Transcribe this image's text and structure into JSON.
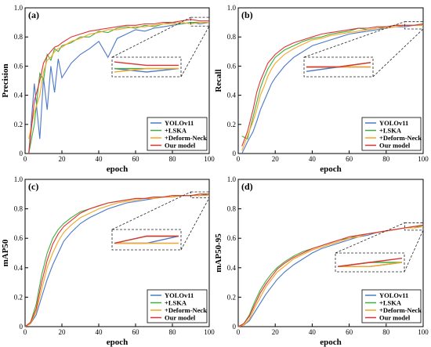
{
  "colors": {
    "YOLOv11": "#4b78c8",
    "+LSKA": "#3fae3f",
    "+Deform-Neck": "#f5a623",
    "Our model": "#e03131"
  },
  "chart_data": [
    {
      "type": "line",
      "panel_label": "(a)",
      "xlabel": "epoch",
      "ylabel": "Precision",
      "xlim": [
        0,
        100
      ],
      "ylim": [
        0,
        1.0
      ],
      "xticks": [
        "0",
        "20",
        "40",
        "60",
        "80",
        "100"
      ],
      "yticks": [
        "0",
        "0.2",
        "0.4",
        "0.6",
        "0.8",
        "1.0"
      ],
      "legend": "bottom-right",
      "legend_entries": [
        "YOLOv11",
        "+LSKA",
        "+Deform-Neck",
        "Our model"
      ],
      "inset": "zoom of epochs 90-100 near y≈0.90",
      "series": [
        {
          "name": "YOLOv11",
          "x": [
            2,
            5,
            8,
            10,
            12,
            14,
            16,
            18,
            20,
            25,
            30,
            35,
            40,
            45,
            50,
            55,
            60,
            65,
            70,
            75,
            80,
            85,
            90,
            95,
            100
          ],
          "y": [
            0.0,
            0.48,
            0.1,
            0.52,
            0.3,
            0.6,
            0.42,
            0.65,
            0.52,
            0.62,
            0.68,
            0.72,
            0.77,
            0.66,
            0.79,
            0.82,
            0.85,
            0.84,
            0.86,
            0.87,
            0.88,
            0.89,
            0.9,
            0.89,
            0.9
          ]
        },
        {
          "name": "+LSKA",
          "x": [
            2,
            5,
            8,
            10,
            12,
            14,
            16,
            18,
            20,
            25,
            30,
            35,
            40,
            45,
            50,
            55,
            60,
            65,
            70,
            75,
            80,
            85,
            90,
            95,
            100
          ],
          "y": [
            0.0,
            0.2,
            0.55,
            0.5,
            0.68,
            0.64,
            0.72,
            0.7,
            0.74,
            0.76,
            0.8,
            0.8,
            0.84,
            0.83,
            0.86,
            0.87,
            0.86,
            0.88,
            0.87,
            0.89,
            0.9,
            0.89,
            0.9,
            0.9,
            0.9
          ]
        },
        {
          "name": "+Deform-Neck",
          "x": [
            2,
            5,
            8,
            10,
            12,
            14,
            16,
            18,
            20,
            25,
            30,
            35,
            40,
            45,
            50,
            55,
            60,
            65,
            70,
            75,
            80,
            85,
            90,
            95,
            100
          ],
          "y": [
            0.1,
            0.28,
            0.4,
            0.56,
            0.64,
            0.66,
            0.7,
            0.72,
            0.73,
            0.77,
            0.79,
            0.82,
            0.83,
            0.85,
            0.85,
            0.86,
            0.87,
            0.87,
            0.88,
            0.89,
            0.89,
            0.9,
            0.89,
            0.9,
            0.9
          ]
        },
        {
          "name": "Our model",
          "x": [
            2,
            5,
            8,
            10,
            12,
            14,
            16,
            18,
            20,
            25,
            30,
            35,
            40,
            45,
            50,
            55,
            60,
            65,
            70,
            75,
            80,
            85,
            90,
            95,
            100
          ],
          "y": [
            0.0,
            0.36,
            0.5,
            0.62,
            0.67,
            0.7,
            0.73,
            0.74,
            0.76,
            0.8,
            0.82,
            0.84,
            0.85,
            0.86,
            0.87,
            0.88,
            0.88,
            0.89,
            0.89,
            0.9,
            0.9,
            0.91,
            0.92,
            0.91,
            0.91
          ]
        }
      ]
    },
    {
      "type": "line",
      "panel_label": "(b)",
      "xlabel": "epoch",
      "ylabel": "Recall",
      "xlim": [
        0,
        100
      ],
      "ylim": [
        0,
        1.0
      ],
      "xticks": [
        "0",
        "20",
        "40",
        "60",
        "80",
        "100"
      ],
      "yticks": [
        "0",
        "0.2",
        "0.4",
        "0.6",
        "0.8",
        "1.0"
      ],
      "legend": "bottom-right",
      "legend_entries": [
        "YOLOv11",
        "+LSKA",
        "+Deform-Neck",
        "Our model"
      ],
      "inset": "zoom of epochs 90-100 near y≈0.88",
      "series": [
        {
          "name": "YOLOv11",
          "x": [
            2,
            5,
            8,
            10,
            12,
            14,
            16,
            18,
            20,
            25,
            30,
            35,
            40,
            45,
            50,
            55,
            60,
            65,
            70,
            75,
            80,
            85,
            90,
            95,
            100
          ],
          "y": [
            0.0,
            0.08,
            0.15,
            0.22,
            0.3,
            0.36,
            0.42,
            0.48,
            0.52,
            0.6,
            0.66,
            0.7,
            0.74,
            0.76,
            0.78,
            0.8,
            0.82,
            0.83,
            0.84,
            0.85,
            0.86,
            0.87,
            0.87,
            0.88,
            0.88
          ]
        },
        {
          "name": "+LSKA",
          "x": [
            2,
            5,
            8,
            10,
            12,
            14,
            16,
            18,
            20,
            25,
            30,
            35,
            40,
            45,
            50,
            55,
            60,
            65,
            70,
            75,
            80,
            85,
            90,
            95,
            100
          ],
          "y": [
            0.12,
            0.1,
            0.25,
            0.35,
            0.45,
            0.52,
            0.58,
            0.62,
            0.66,
            0.71,
            0.74,
            0.77,
            0.79,
            0.8,
            0.82,
            0.83,
            0.84,
            0.86,
            0.85,
            0.86,
            0.87,
            0.88,
            0.88,
            0.88,
            0.89
          ]
        },
        {
          "name": "+Deform-Neck",
          "x": [
            2,
            5,
            8,
            10,
            12,
            14,
            16,
            18,
            20,
            25,
            30,
            35,
            40,
            45,
            50,
            55,
            60,
            65,
            70,
            75,
            80,
            85,
            90,
            95,
            100
          ],
          "y": [
            0.02,
            0.12,
            0.22,
            0.3,
            0.4,
            0.46,
            0.53,
            0.58,
            0.62,
            0.68,
            0.72,
            0.75,
            0.78,
            0.79,
            0.81,
            0.82,
            0.83,
            0.84,
            0.85,
            0.86,
            0.86,
            0.87,
            0.88,
            0.88,
            0.88
          ]
        },
        {
          "name": "Our model",
          "x": [
            2,
            5,
            8,
            10,
            12,
            14,
            16,
            18,
            20,
            25,
            30,
            35,
            40,
            45,
            50,
            55,
            60,
            65,
            70,
            75,
            80,
            85,
            90,
            95,
            100
          ],
          "y": [
            0.05,
            0.15,
            0.3,
            0.42,
            0.5,
            0.56,
            0.62,
            0.65,
            0.68,
            0.73,
            0.76,
            0.78,
            0.8,
            0.82,
            0.83,
            0.84,
            0.85,
            0.86,
            0.86,
            0.87,
            0.87,
            0.88,
            0.88,
            0.88,
            0.89
          ]
        }
      ]
    },
    {
      "type": "line",
      "panel_label": "(c)",
      "xlabel": "epoch",
      "ylabel": "mAP50",
      "xlim": [
        0,
        100
      ],
      "ylim": [
        0,
        1.0
      ],
      "xticks": [
        "0",
        "20",
        "40",
        "60",
        "80",
        "100"
      ],
      "yticks": [
        "0",
        "0.2",
        "0.4",
        "0.6",
        "0.8",
        "1.0"
      ],
      "legend": "bottom-right",
      "legend_entries": [
        "YOLOv11",
        "+LSKA",
        "+Deform-Neck",
        "Our model"
      ],
      "inset": "zoom of epochs 90-100 near y≈0.89",
      "series": [
        {
          "name": "YOLOv11",
          "x": [
            0,
            3,
            6,
            9,
            12,
            15,
            18,
            21,
            25,
            30,
            35,
            40,
            45,
            50,
            55,
            60,
            65,
            70,
            75,
            80,
            85,
            90,
            95,
            100
          ],
          "y": [
            0.0,
            0.02,
            0.08,
            0.2,
            0.32,
            0.42,
            0.5,
            0.58,
            0.64,
            0.7,
            0.74,
            0.77,
            0.8,
            0.82,
            0.84,
            0.85,
            0.86,
            0.87,
            0.88,
            0.88,
            0.89,
            0.89,
            0.89,
            0.9
          ]
        },
        {
          "name": "+LSKA",
          "x": [
            0,
            3,
            6,
            9,
            12,
            15,
            18,
            21,
            25,
            30,
            35,
            40,
            45,
            50,
            55,
            60,
            65,
            70,
            75,
            80,
            85,
            90,
            95,
            100
          ],
          "y": [
            0.0,
            0.03,
            0.15,
            0.35,
            0.5,
            0.6,
            0.66,
            0.7,
            0.74,
            0.78,
            0.8,
            0.82,
            0.84,
            0.85,
            0.86,
            0.87,
            0.87,
            0.88,
            0.88,
            0.89,
            0.89,
            0.89,
            0.9,
            0.9
          ]
        },
        {
          "name": "+Deform-Neck",
          "x": [
            0,
            3,
            6,
            9,
            12,
            15,
            18,
            21,
            25,
            30,
            35,
            40,
            45,
            50,
            55,
            60,
            65,
            70,
            75,
            80,
            85,
            90,
            95,
            100
          ],
          "y": [
            0.0,
            0.02,
            0.1,
            0.25,
            0.4,
            0.5,
            0.58,
            0.64,
            0.69,
            0.74,
            0.77,
            0.8,
            0.82,
            0.84,
            0.85,
            0.86,
            0.87,
            0.87,
            0.88,
            0.88,
            0.89,
            0.89,
            0.89,
            0.89
          ]
        },
        {
          "name": "Our model",
          "x": [
            0,
            3,
            6,
            9,
            12,
            15,
            18,
            21,
            25,
            30,
            35,
            40,
            45,
            50,
            55,
            60,
            65,
            70,
            75,
            80,
            85,
            90,
            95,
            100
          ],
          "y": [
            0.0,
            0.03,
            0.12,
            0.3,
            0.45,
            0.56,
            0.63,
            0.68,
            0.72,
            0.77,
            0.8,
            0.82,
            0.84,
            0.85,
            0.86,
            0.87,
            0.87,
            0.88,
            0.88,
            0.89,
            0.89,
            0.89,
            0.9,
            0.9
          ]
        }
      ]
    },
    {
      "type": "line",
      "panel_label": "(d)",
      "xlabel": "epoch",
      "ylabel": "mAP50-95",
      "xlim": [
        0,
        100
      ],
      "ylim": [
        0,
        1.0
      ],
      "xticks": [
        "0",
        "20",
        "40",
        "60",
        "80",
        "100"
      ],
      "yticks": [
        "0",
        "0.2",
        "0.4",
        "0.6",
        "0.8",
        "1.0"
      ],
      "legend": "bottom-right",
      "legend_entries": [
        "YOLOv11",
        "+LSKA",
        "+Deform-Neck",
        "Our model"
      ],
      "inset": "zoom of epochs 90-100 near y≈0.68",
      "series": [
        {
          "name": "YOLOv11",
          "x": [
            0,
            3,
            6,
            9,
            12,
            15,
            18,
            21,
            25,
            30,
            35,
            40,
            45,
            50,
            55,
            60,
            65,
            70,
            75,
            80,
            85,
            90,
            95,
            100
          ],
          "y": [
            0.0,
            0.01,
            0.04,
            0.1,
            0.16,
            0.22,
            0.27,
            0.32,
            0.37,
            0.42,
            0.46,
            0.5,
            0.53,
            0.55,
            0.57,
            0.59,
            0.61,
            0.62,
            0.64,
            0.65,
            0.66,
            0.67,
            0.67,
            0.68
          ]
        },
        {
          "name": "+LSKA",
          "x": [
            0,
            3,
            6,
            9,
            12,
            15,
            18,
            21,
            25,
            30,
            35,
            40,
            45,
            50,
            55,
            60,
            65,
            70,
            75,
            80,
            85,
            90,
            95,
            100
          ],
          "y": [
            0.0,
            0.02,
            0.08,
            0.17,
            0.25,
            0.31,
            0.36,
            0.4,
            0.44,
            0.48,
            0.51,
            0.53,
            0.55,
            0.57,
            0.59,
            0.6,
            0.62,
            0.63,
            0.64,
            0.65,
            0.66,
            0.67,
            0.68,
            0.68
          ]
        },
        {
          "name": "+Deform-Neck",
          "x": [
            0,
            3,
            6,
            9,
            12,
            15,
            18,
            21,
            25,
            30,
            35,
            40,
            45,
            50,
            55,
            60,
            65,
            70,
            75,
            80,
            85,
            90,
            95,
            100
          ],
          "y": [
            0.0,
            0.01,
            0.05,
            0.13,
            0.2,
            0.27,
            0.32,
            0.37,
            0.41,
            0.46,
            0.49,
            0.52,
            0.54,
            0.56,
            0.58,
            0.6,
            0.61,
            0.63,
            0.64,
            0.65,
            0.66,
            0.67,
            0.67,
            0.68
          ]
        },
        {
          "name": "Our model",
          "x": [
            0,
            3,
            6,
            9,
            12,
            15,
            18,
            21,
            25,
            30,
            35,
            40,
            45,
            50,
            55,
            60,
            65,
            70,
            75,
            80,
            85,
            90,
            95,
            100
          ],
          "y": [
            0.0,
            0.02,
            0.07,
            0.15,
            0.23,
            0.29,
            0.34,
            0.39,
            0.43,
            0.47,
            0.5,
            0.53,
            0.55,
            0.57,
            0.59,
            0.61,
            0.62,
            0.63,
            0.64,
            0.65,
            0.66,
            0.67,
            0.68,
            0.69
          ]
        }
      ]
    }
  ]
}
